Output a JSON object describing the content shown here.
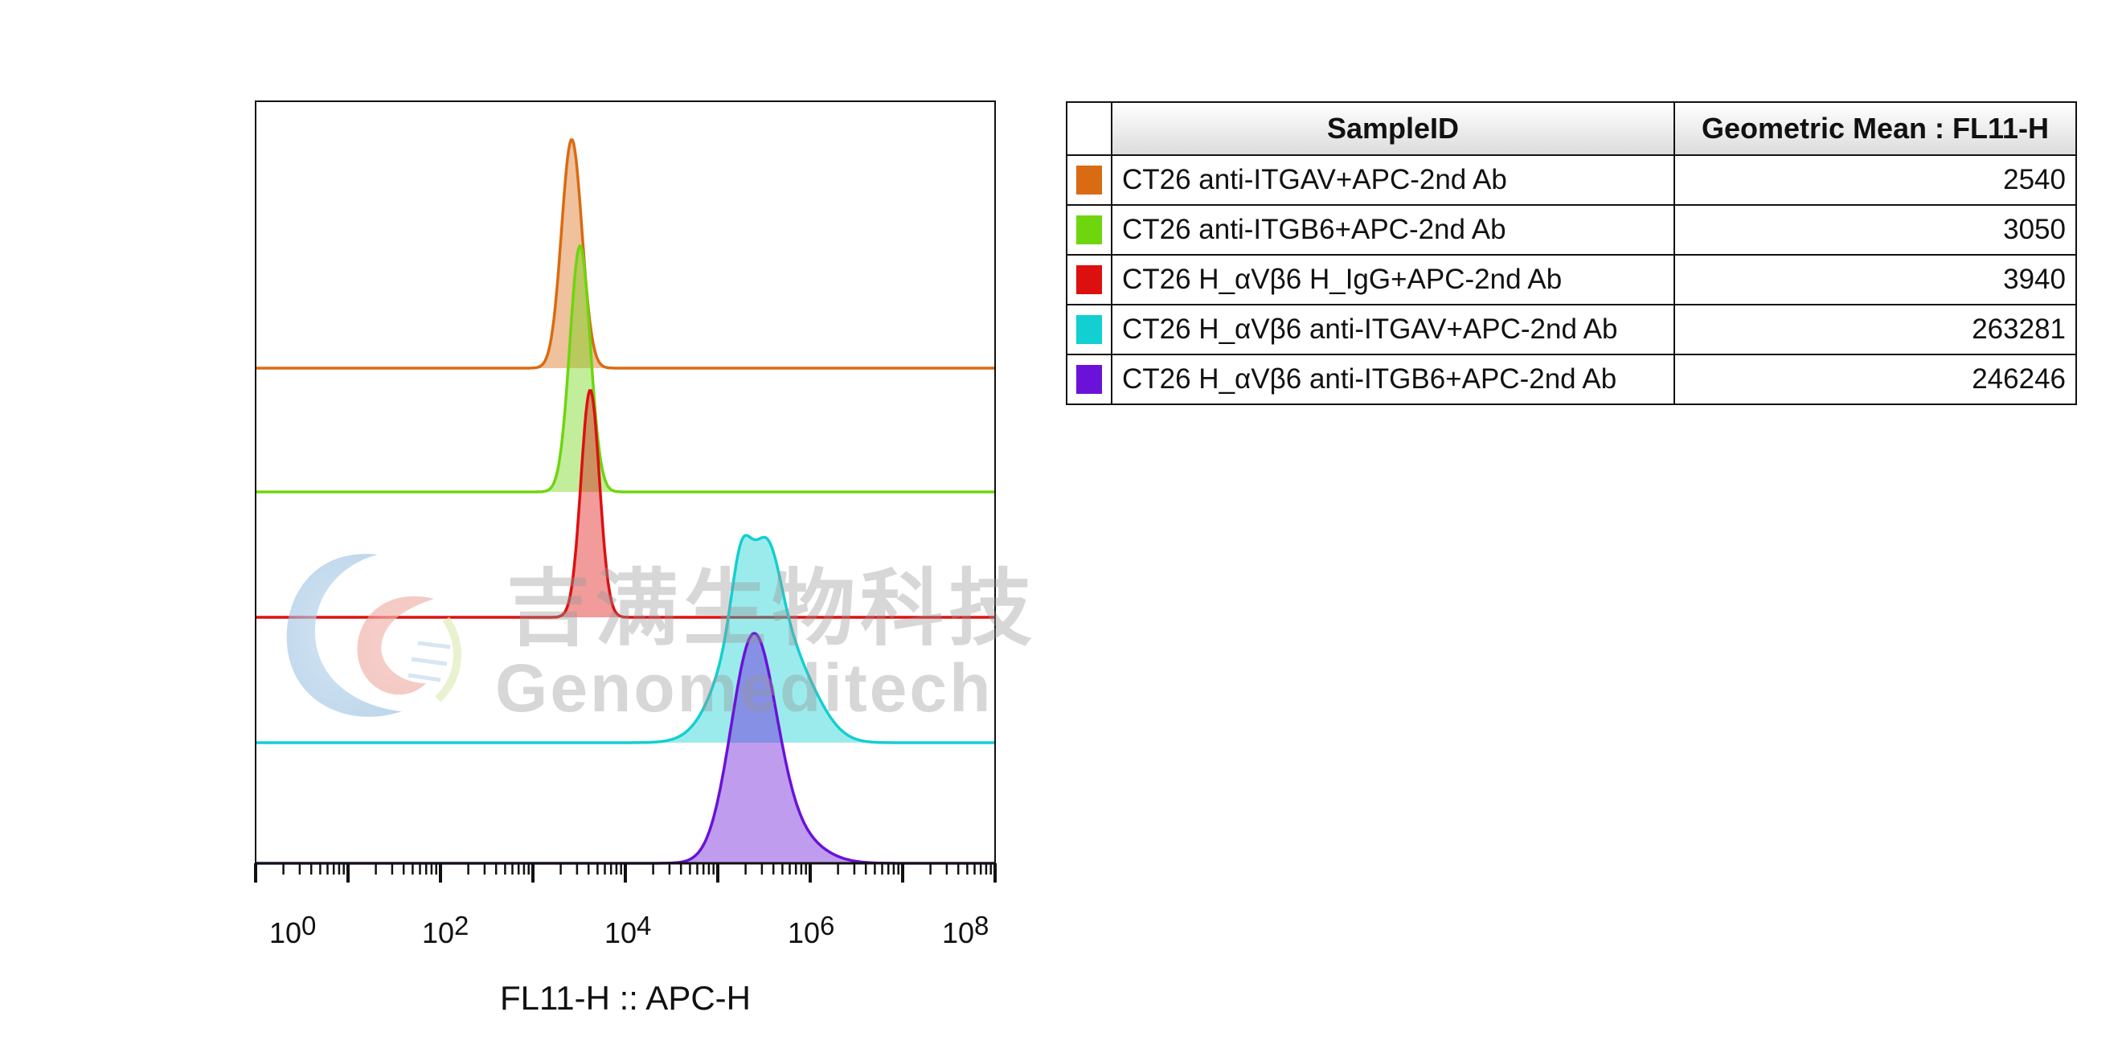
{
  "watermark": {
    "cn_text": "吉满生物科技",
    "en_text": "Genomeditech"
  },
  "table": {
    "header_sample": "SampleID",
    "header_mean": "Geometric Mean : FL11-H",
    "rows": [
      {
        "sample": "CT26 anti-ITGAV+APC-2nd Ab",
        "mean": "2540",
        "color": "#d96b12"
      },
      {
        "sample": "CT26 anti-ITGB6+APC-2nd Ab",
        "mean": "3050",
        "color": "#6ed50f"
      },
      {
        "sample": "CT26 H_αVβ6 H_IgG+APC-2nd Ab",
        "mean": "3940",
        "color": "#dd1010"
      },
      {
        "sample": "CT26 H_αVβ6 anti-ITGAV+APC-2nd Ab",
        "mean": "263281",
        "color": "#12cfd2"
      },
      {
        "sample": "CT26 H_αVβ6 anti-ITGB6+APC-2nd Ab",
        "mean": "246246",
        "color": "#6a12d8"
      }
    ]
  },
  "chart_data": {
    "type": "area",
    "xlabel": "FL11-H :: APC-H",
    "x_scale": "log10",
    "xlim": [
      1,
      100000000
    ],
    "x_ticks": [
      {
        "base": "10",
        "exp": "0"
      },
      {
        "base": "10",
        "exp": "2"
      },
      {
        "base": "10",
        "exp": "4"
      },
      {
        "base": "10",
        "exp": "6"
      },
      {
        "base": "10",
        "exp": "8"
      }
    ],
    "layout": "offset histogram (staggered overlay)",
    "series": [
      {
        "name": "CT26 anti-ITGAV+APC-2nd Ab",
        "color": "#d96b12",
        "peaks": [
          {
            "center_log10": 3.42,
            "sigma_log10": 0.11,
            "height": 1.0
          }
        ],
        "geometric_mean": 2540
      },
      {
        "name": "CT26 anti-ITGB6+APC-2nd Ab",
        "color": "#6ed50f",
        "peaks": [
          {
            "center_log10": 3.51,
            "sigma_log10": 0.11,
            "height": 1.0
          }
        ],
        "geometric_mean": 3050
      },
      {
        "name": "CT26 H_αVβ6 H_IgG+APC-2nd Ab",
        "color": "#dd1010",
        "peaks": [
          {
            "center_log10": 3.62,
            "sigma_log10": 0.1,
            "height": 1.0
          }
        ],
        "geometric_mean": 3940
      },
      {
        "name": "CT26 H_αVβ6 anti-ITGAV+APC-2nd Ab",
        "color": "#12cfd2",
        "peaks": [
          {
            "center_log10": 5.42,
            "sigma_log10": 0.33,
            "height": 0.72
          },
          {
            "center_log10": 5.25,
            "sigma_log10": 0.1,
            "height": 0.27
          },
          {
            "center_log10": 5.55,
            "sigma_log10": 0.13,
            "height": 0.22
          },
          {
            "center_log10": 5.95,
            "sigma_log10": 0.25,
            "height": 0.14
          }
        ],
        "geometric_mean": 263281
      },
      {
        "name": "CT26 H_αVβ6 anti-ITGB6+APC-2nd Ab",
        "color": "#6a12d8",
        "peaks": [
          {
            "center_log10": 5.38,
            "sigma_log10": 0.24,
            "height": 1.0
          },
          {
            "center_log10": 5.75,
            "sigma_log10": 0.32,
            "height": 0.14
          }
        ],
        "geometric_mean": 246246
      }
    ]
  }
}
